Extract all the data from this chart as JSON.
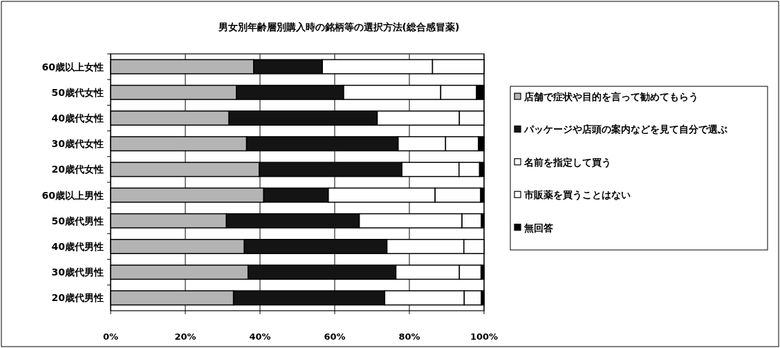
{
  "chart_data": {
    "type": "bar",
    "orientation": "horizontal",
    "stacked": true,
    "title": "男女別年齢層別購入時の銘柄等の選択方法(総合感冒薬)",
    "categories": [
      "60歳以上女性",
      "50歳代女性",
      "40歳代女性",
      "30歳代女性",
      "20歳代女性",
      "60歳以上男性",
      "50歳代男性",
      "40歳代男性",
      "30歳代男性",
      "20歳代男性"
    ],
    "series": [
      {
        "name": "店舗で症状や目的を言って勧めてもらう",
        "color": "#b4b4b4",
        "values": [
          38.3,
          33.7,
          31.7,
          36.4,
          39.8,
          41.0,
          31.0,
          35.8,
          36.8,
          32.9
        ]
      },
      {
        "name": "パッケージや店頭の案内などを見て自分で選ぶ",
        "color": "#141414",
        "values": [
          18.4,
          28.7,
          39.7,
          40.6,
          38.2,
          17.3,
          35.6,
          38.2,
          39.6,
          40.5
        ]
      },
      {
        "name": "名前を指定して買う",
        "color": "#ffffff",
        "values": [
          29.5,
          26.0,
          22.0,
          12.7,
          15.3,
          28.6,
          27.5,
          20.6,
          17.0,
          21.3
        ]
      },
      {
        "name": "市販薬を買うことはない",
        "color": "#fefefe",
        "values": [
          13.8,
          9.6,
          6.6,
          8.8,
          5.5,
          12.2,
          5.2,
          5.4,
          5.8,
          4.6
        ]
      },
      {
        "name": "無回答",
        "color": "#000000",
        "values": [
          0,
          2.0,
          0,
          1.5,
          1.2,
          0.9,
          0.7,
          0,
          0.8,
          0.7
        ]
      }
    ],
    "xlim": [
      0,
      100
    ],
    "xticks": [
      {
        "value": 0,
        "label": "0%"
      },
      {
        "value": 20,
        "label": "20%"
      },
      {
        "value": 40,
        "label": "40%"
      },
      {
        "value": 60,
        "label": "60%"
      },
      {
        "value": 80,
        "label": "80%"
      },
      {
        "value": 100,
        "label": "100%"
      }
    ],
    "grid": "x",
    "legend": "right"
  }
}
